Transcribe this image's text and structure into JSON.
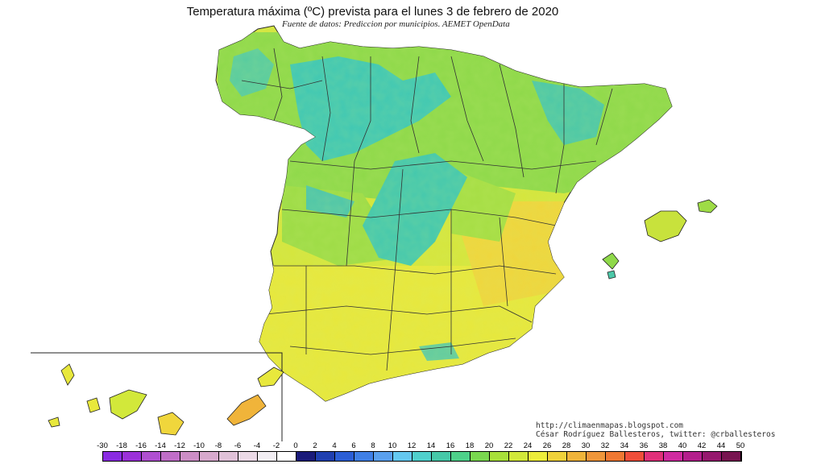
{
  "title": "Temperatura máxima (ºC) prevista para el lunes 3 de febrero de 2020",
  "subtitle": "Fuente de datos: Prediccion por municipios. AEMET OpenData",
  "credits": {
    "line1": "http://climaenmapas.blogspot.com",
    "line2": "César Rodríguez Ballesteros, twitter: @crballesteros"
  },
  "legend": {
    "labels": [
      "-30",
      "-18",
      "-16",
      "-14",
      "-12",
      "-10",
      "-8",
      "-6",
      "-4",
      "-2",
      "0",
      "2",
      "4",
      "6",
      "8",
      "10",
      "12",
      "14",
      "16",
      "18",
      "20",
      "22",
      "24",
      "26",
      "28",
      "30",
      "32",
      "34",
      "36",
      "38",
      "40",
      "42",
      "44",
      "50"
    ],
    "colors": [
      "#8a2be2",
      "#9b30d9",
      "#b04fd1",
      "#c06ec8",
      "#cc8ec6",
      "#d7a9cd",
      "#e0c1d8",
      "#ebd9e6",
      "#f2eef3",
      "#ffffff",
      "#1a1a7a",
      "#1f3fb0",
      "#2b5ed6",
      "#3f7fe6",
      "#5aa0ee",
      "#64c8f0",
      "#4fd0cc",
      "#45c8a8",
      "#4ed18a",
      "#7ad84f",
      "#a8e03a",
      "#d2e83a",
      "#eded3a",
      "#f0d23a",
      "#f0b43a",
      "#f0963a",
      "#f07832",
      "#f04e3a",
      "#e0307a",
      "#d02aa0",
      "#b41e8c",
      "#96186e",
      "#781450"
    ]
  },
  "map_colors": {
    "cool_zone": "#40c8b4",
    "mild_zone": "#7ad84f",
    "warm_zone": "#d2e83a",
    "hot_zone": "#eded3a",
    "sea": "#ffffff",
    "border": "#333333"
  }
}
